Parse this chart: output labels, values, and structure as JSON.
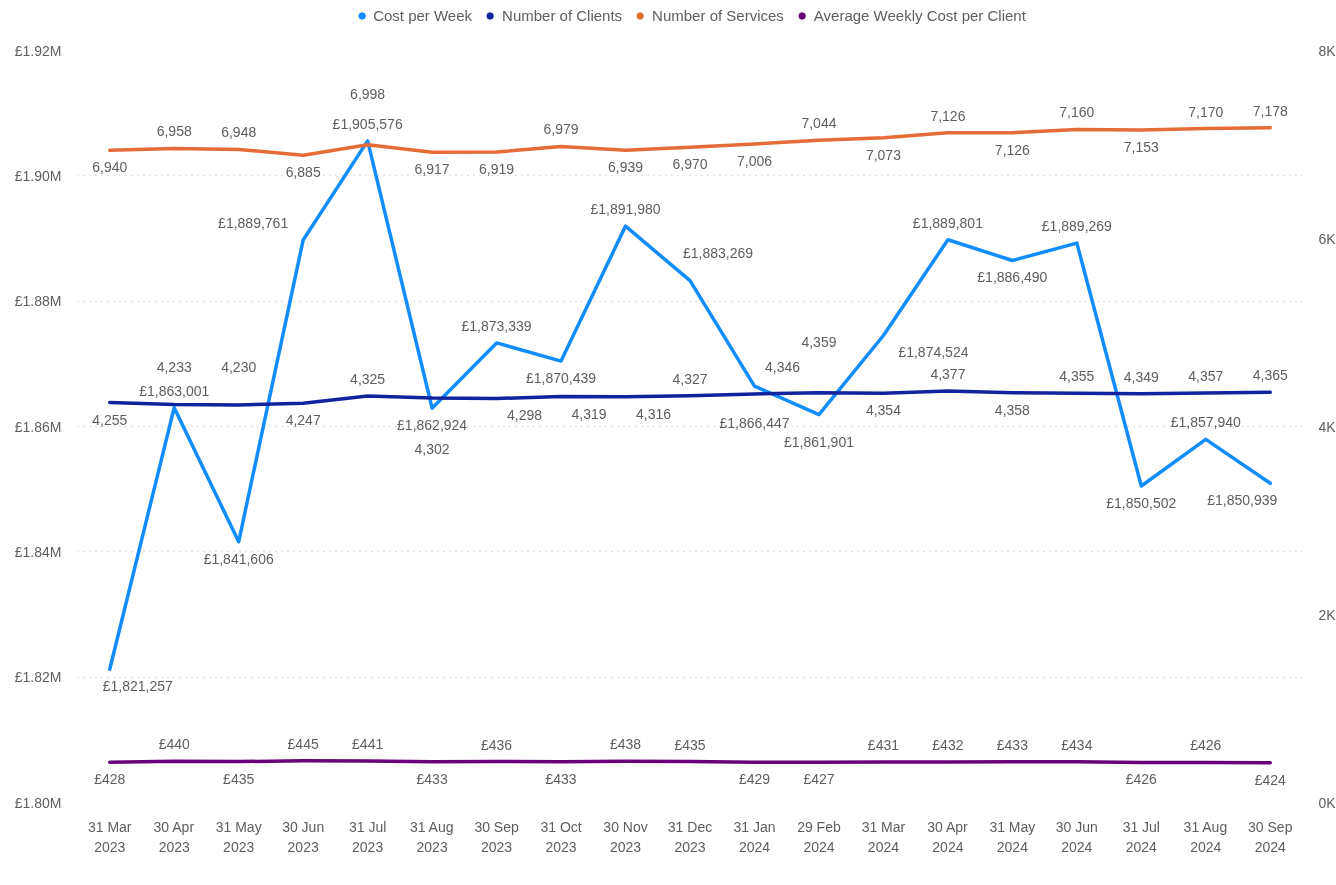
{
  "chart_data": {
    "type": "line",
    "categories": [
      "31 Mar 2023",
      "30 Apr 2023",
      "31 May 2023",
      "30 Jun 2023",
      "31 Jul 2023",
      "31 Aug 2023",
      "30 Sep 2023",
      "31 Oct 2023",
      "30 Nov 2023",
      "31 Dec 2023",
      "31 Jan 2024",
      "29 Feb 2024",
      "31 Mar 2024",
      "30 Apr 2024",
      "31 May 2024",
      "30 Jun 2024",
      "31 Jul 2024",
      "31 Aug 2024",
      "30 Sep 2024"
    ],
    "series": [
      {
        "name": "Cost per Week",
        "color": "#118dff",
        "values": [
          1821257,
          1863001,
          1841606,
          1889761,
          1905576,
          1862924,
          1873339,
          1870439,
          1891980,
          1883269,
          1866447,
          1861901,
          1874524,
          1889801,
          1886490,
          1889269,
          1850502,
          1857940,
          1850939
        ],
        "value_labels": [
          "£1,821,257",
          "£1,863,001",
          "£1,841,606",
          "£1,889,761",
          "£1,905,576",
          "£1,862,924",
          "£1,873,339",
          "£1,870,439",
          "£1,891,980",
          "£1,883,269",
          "£1,866,447",
          "£1,861,901",
          "£1,874,524",
          "£1,889,801",
          "£1,886,490",
          "£1,889,269",
          "£1,850,502",
          "£1,857,940",
          "£1,850,939"
        ]
      },
      {
        "name": "Number of Clients",
        "color": "#12239e",
        "axis": "y2",
        "values": [
          4255,
          4233,
          4230,
          4247,
          4325,
          4302,
          4298,
          4319,
          4316,
          4327,
          4346,
          4359,
          4354,
          4377,
          4358,
          4355,
          4349,
          4357,
          4365
        ],
        "value_labels": [
          "4,255",
          "4,233",
          "4,230",
          "4,247",
          "4,325",
          "4,302",
          "4,298",
          "4,319",
          "4,316",
          "4,327",
          "4,346",
          "4,359",
          "4,354",
          "4,377",
          "4,358",
          "4,355",
          "4,349",
          "4,357",
          "4,365"
        ]
      },
      {
        "name": "Number of Services",
        "color": "#e66c37",
        "axis": "y2",
        "values": [
          6940,
          6958,
          6948,
          6885,
          6998,
          6917,
          6919,
          6979,
          6939,
          6970,
          7006,
          7044,
          7073,
          7126,
          7126,
          7160,
          7153,
          7170,
          7178
        ],
        "value_labels": [
          "6,940",
          "6,958",
          "6,948",
          "6,885",
          "6,998",
          "6,917",
          "6,919",
          "6,979",
          "6,939",
          "6,970",
          "7,006",
          "7,044",
          "7,073",
          "7,126",
          "7,126",
          "7,160",
          "7,153",
          "7,170",
          "7,178"
        ]
      },
      {
        "name": "Average Weekly Cost per Client",
        "color": "#6b007b",
        "axis": "y2",
        "values": [
          428,
          440,
          435,
          445,
          441,
          433,
          436,
          433,
          438,
          435,
          429,
          427,
          431,
          432,
          433,
          434,
          426,
          426,
          424
        ],
        "value_labels": [
          "£428",
          "£440",
          "£435",
          "£445",
          "£441",
          "£433",
          "£436",
          "£433",
          "£438",
          "£435",
          "£429",
          "£427",
          "£431",
          "£432",
          "£433",
          "£434",
          "£426",
          "£426",
          "£424"
        ]
      }
    ],
    "ylim": [
      1800000,
      1920000
    ],
    "yticks": [
      {
        "value": 1800000,
        "label": "£1.80M"
      },
      {
        "value": 1820000,
        "label": "£1.82M"
      },
      {
        "value": 1840000,
        "label": "£1.84M"
      },
      {
        "value": 1860000,
        "label": "£1.86M"
      },
      {
        "value": 1880000,
        "label": "£1.88M"
      },
      {
        "value": 1900000,
        "label": "£1.90M"
      },
      {
        "value": 1920000,
        "label": "£1.92M"
      }
    ],
    "y2lim": [
      0,
      8000
    ],
    "y2ticks": [
      {
        "value": 0,
        "label": "0K"
      },
      {
        "value": 2000,
        "label": "2K"
      },
      {
        "value": 4000,
        "label": "4K"
      },
      {
        "value": 6000,
        "label": "6K"
      },
      {
        "value": 8000,
        "label": "8K"
      }
    ],
    "grid": "y",
    "legend": "top"
  }
}
